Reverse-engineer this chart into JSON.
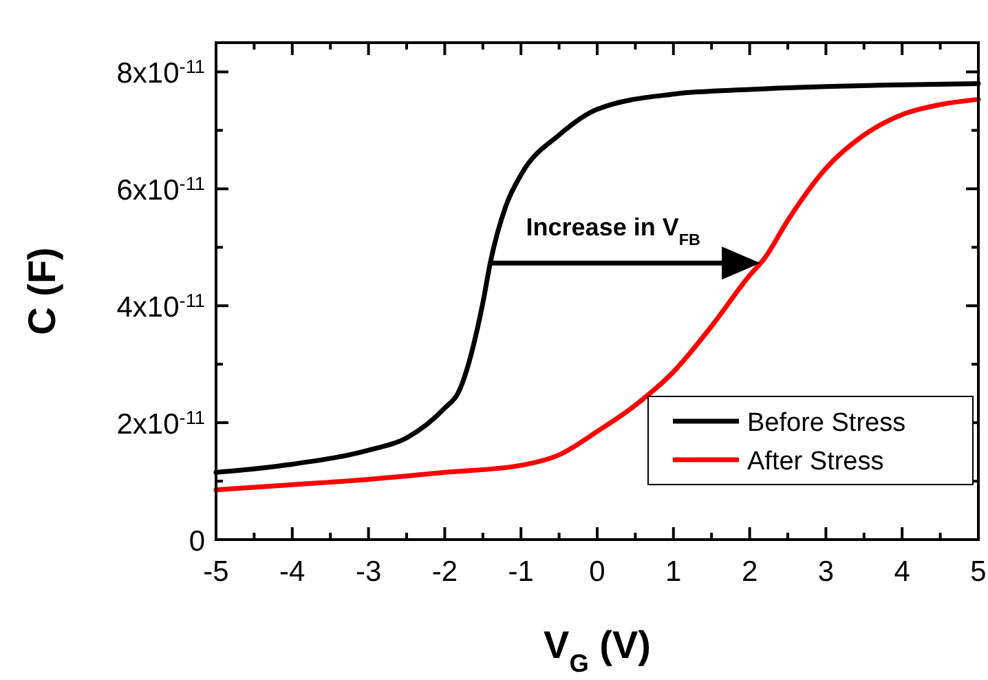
{
  "chart_data": {
    "type": "line",
    "xlabel": "V$_{G}$ (V)",
    "ylabel": "C (F)",
    "xlim": [
      -5,
      5
    ],
    "ylim": [
      0,
      8.5e-11
    ],
    "xticks": [
      -5,
      {
        "value": -4.5,
        "label": null
      },
      -4,
      {
        "value": -3.5,
        "label": null
      },
      -3,
      {
        "value": -2.5,
        "label": null
      },
      -2,
      {
        "value": -1.5,
        "label": null
      },
      -1,
      {
        "value": -0.5,
        "label": null
      },
      0,
      {
        "value": 0.5,
        "label": null
      },
      1,
      {
        "value": 1.5,
        "label": null
      },
      2,
      {
        "value": 2.5,
        "label": null
      },
      3,
      {
        "value": 3.5,
        "label": null
      },
      4,
      {
        "value": 4.5,
        "label": null
      },
      5
    ],
    "yticks": [
      0,
      {
        "value": 1e-11,
        "label": null
      },
      {
        "value": 2e-11,
        "label": "2x10$^{-11}$"
      },
      {
        "value": 3e-11,
        "label": null
      },
      {
        "value": 4e-11,
        "label": "4x10$^{-11}$"
      },
      {
        "value": 5e-11,
        "label": null
      },
      {
        "value": 6e-11,
        "label": "6x10$^{-11}$"
      },
      {
        "value": 7e-11,
        "label": null
      },
      {
        "value": 8e-11,
        "label": "8x10$^{-11}$"
      }
    ],
    "legend": "bottom right",
    "grid": false,
    "marker": "none",
    "line_style": "solid",
    "annotations": [
      "Increase in V$_{FB}$"
    ],
    "series": [
      {
        "name": "Before Stress",
        "color": "#000000",
        "x": [
          -5,
          -4,
          -3,
          -2.5,
          -2,
          -1.82,
          -1.5,
          -1.4,
          -1.2,
          -1,
          -0.5,
          0,
          1,
          2,
          3,
          4,
          5
        ],
        "values": [
          1.15e-11,
          1.29e-11,
          1.53e-11,
          1.74e-11,
          2.25e-11,
          2.52e-11,
          4.05e-11,
          4.75e-11,
          5.7e-11,
          6.24e-11,
          6.92e-11,
          7.36e-11,
          7.62e-11,
          7.7e-11,
          7.75e-11,
          7.78e-11,
          7.8e-11
        ]
      },
      {
        "name": "After Stress",
        "color": "#ff0000",
        "x": [
          -5,
          -4,
          -3,
          -2,
          -1,
          -0.5,
          0,
          0.5,
          1,
          1.5,
          2,
          2.2,
          2.5,
          3,
          3.5,
          4,
          4.5,
          5
        ],
        "values": [
          8.5e-12,
          9.4e-12,
          1.03e-11,
          1.15e-11,
          1.27e-11,
          1.45e-11,
          1.85e-11,
          2.3e-11,
          2.87e-11,
          3.65e-11,
          4.52e-11,
          4.82e-11,
          5.46e-11,
          6.35e-11,
          6.92e-11,
          7.27e-11,
          7.44e-11,
          7.53e-11
        ]
      }
    ]
  }
}
